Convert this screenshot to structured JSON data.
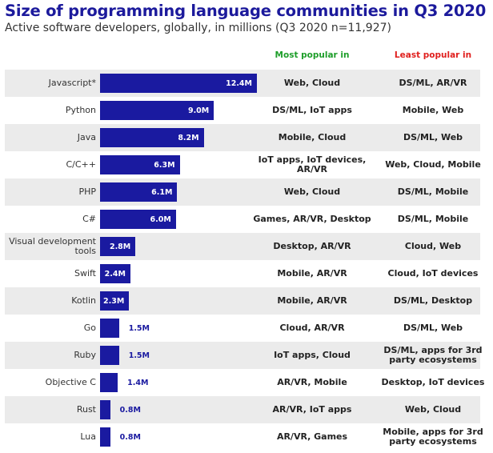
{
  "chart_data": {
    "type": "bar",
    "orientation": "horizontal",
    "title": "Size of programming language communities in Q3 2020",
    "subtitle": "Active software developers, globally, in millions (Q3 2020 n=11,927)",
    "unit": "M",
    "bar_color": "#1a1aa0",
    "columns": {
      "most": "Most popular in",
      "least": "Least popular in"
    },
    "column_colors": {
      "most": "#1e9e2a",
      "least": "#e0201e"
    },
    "categories": [
      "Javascript*",
      "Python",
      "Java",
      "C/C++",
      "PHP",
      "C#",
      "Visual development tools",
      "Swift",
      "Kotlin",
      "Go",
      "Ruby",
      "Objective C",
      "Rust",
      "Lua"
    ],
    "values": [
      12.4,
      9.0,
      8.2,
      6.3,
      6.1,
      6.0,
      2.8,
      2.4,
      2.3,
      1.5,
      1.5,
      1.4,
      0.8,
      0.8
    ],
    "labels": [
      "12.4M",
      "9.0M",
      "8.2M",
      "6.3M",
      "6.1M",
      "6.0M",
      "2.8M",
      "2.4M",
      "2.3M",
      "1.5M",
      "1.5M",
      "1.4M",
      "0.8M",
      "0.8M"
    ],
    "most_popular": [
      "Web, Cloud",
      "DS/ML, IoT apps",
      "Mobile, Cloud",
      "IoT apps, IoT devices, AR/VR",
      "Web, Cloud",
      "Games, AR/VR, Desktop",
      "Desktop, AR/VR",
      "Mobile, AR/VR",
      "Mobile, AR/VR",
      "Cloud, AR/VR",
      "IoT apps, Cloud",
      "AR/VR, Mobile",
      "AR/VR, IoT apps",
      "AR/VR, Games"
    ],
    "least_popular": [
      "DS/ML, AR/VR",
      "Mobile, Web",
      "DS/ML, Web",
      "Web, Cloud, Mobile",
      "DS/ML, Mobile",
      "DS/ML, Mobile",
      "Cloud, Web",
      "Cloud, IoT devices",
      "DS/ML, Desktop",
      "DS/ML, Web",
      "DS/ML, apps for 3rd party ecosystems",
      "Desktop, IoT devices",
      "Web, Cloud",
      "Mobile, apps for 3rd party ecosystems"
    ]
  }
}
